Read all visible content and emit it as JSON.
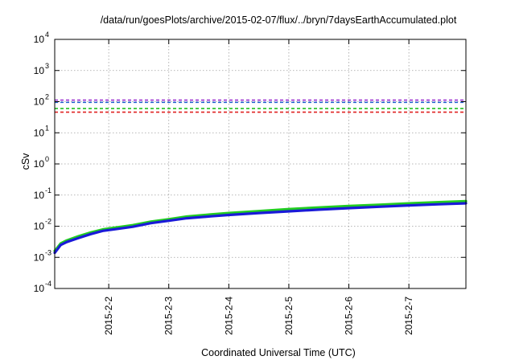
{
  "chart_data": {
    "type": "line",
    "title": "/data/run/goesPlots/archive/2015-02-07/flux/../bryn/7daysEarthAccumulated.plot",
    "xlabel": "Coordinated Universal Time (UTC)",
    "ylabel": "cSv",
    "y_scale": "log",
    "ylim": [
      0.0001,
      10000
    ],
    "xlim_days": [
      1.1,
      7.95
    ],
    "grid": true,
    "x_ticks": [
      {
        "day": 2,
        "label": "2015-2-2"
      },
      {
        "day": 3,
        "label": "2015-2-3"
      },
      {
        "day": 4,
        "label": "2015-2-4"
      },
      {
        "day": 5,
        "label": "2015-2-5"
      },
      {
        "day": 6,
        "label": "2015-2-6"
      },
      {
        "day": 7,
        "label": "2015-2-7"
      }
    ],
    "y_ticks": [
      {
        "value": 0.0001,
        "base": "10",
        "exp": "-4"
      },
      {
        "value": 0.001,
        "base": "10",
        "exp": "-3"
      },
      {
        "value": 0.01,
        "base": "10",
        "exp": "-2"
      },
      {
        "value": 0.1,
        "base": "10",
        "exp": "-1"
      },
      {
        "value": 1,
        "base": "10",
        "exp": "0"
      },
      {
        "value": 10,
        "base": "10",
        "exp": "1"
      },
      {
        "value": 100,
        "base": "10",
        "exp": "2"
      },
      {
        "value": 1000,
        "base": "10",
        "exp": "3"
      },
      {
        "value": 10000,
        "base": "10",
        "exp": "4"
      }
    ],
    "threshold_lines": [
      {
        "value": 112,
        "color": "#9b30d0"
      },
      {
        "value": 95,
        "color": "#1f5fd0"
      },
      {
        "value": 60,
        "color": "#22c022"
      },
      {
        "value": 46,
        "color": "#e02020"
      }
    ],
    "series": [
      {
        "color": "#22cc22",
        "x": [
          1.1,
          1.2,
          1.3,
          1.5,
          1.7,
          1.9,
          2.1,
          2.4,
          2.7,
          3.0,
          3.3,
          3.7,
          4.0,
          4.5,
          5.0,
          5.5,
          6.0,
          6.5,
          7.0,
          7.5,
          7.95
        ],
        "y": [
          0.0016,
          0.0028,
          0.0035,
          0.0048,
          0.0063,
          0.0079,
          0.009,
          0.0108,
          0.014,
          0.0168,
          0.0204,
          0.0238,
          0.0265,
          0.0305,
          0.0355,
          0.04,
          0.0445,
          0.049,
          0.054,
          0.059,
          0.0635
        ]
      },
      {
        "color": "#1a1ad8",
        "x": [
          1.1,
          1.2,
          1.3,
          1.5,
          1.7,
          1.9,
          2.1,
          2.4,
          2.7,
          3.0,
          3.3,
          3.7,
          4.0,
          4.5,
          5.0,
          5.5,
          6.0,
          6.5,
          7.0,
          7.5,
          7.95
        ],
        "y": [
          0.0014,
          0.0025,
          0.0031,
          0.0042,
          0.0056,
          0.0071,
          0.008,
          0.0096,
          0.0125,
          0.015,
          0.018,
          0.0208,
          0.023,
          0.0265,
          0.03,
          0.034,
          0.038,
          0.042,
          0.0465,
          0.0505,
          0.0545
        ]
      }
    ]
  }
}
